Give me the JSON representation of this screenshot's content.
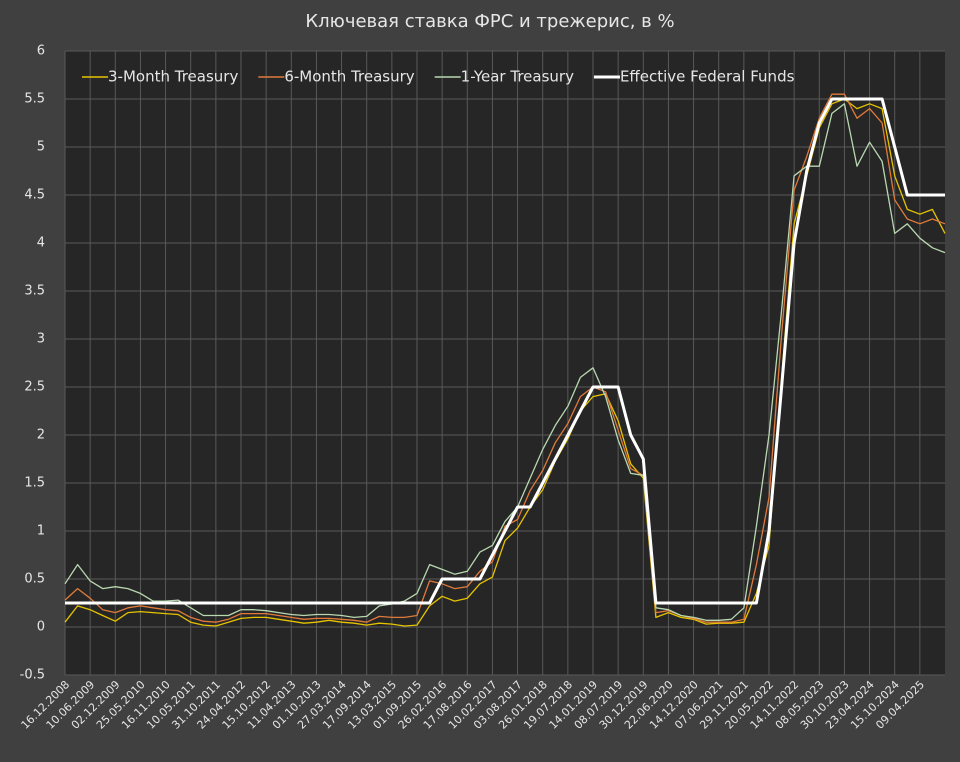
{
  "chart_data": {
    "type": "line",
    "title": "Ключевая ставка ФРС и трежерис, в %",
    "categories": [
      "16.12.2008",
      null,
      "10.06.2009",
      null,
      "02.12.2009",
      null,
      "25.05.2010",
      null,
      "16.11.2010",
      null,
      "10.05.2011",
      null,
      "31.10.2011",
      null,
      "24.04.2012",
      null,
      "15.10.2012",
      null,
      "11.04.2013",
      null,
      "01.10.2013",
      null,
      "27.03.2014",
      null,
      "17.09.2014",
      null,
      "13.03.2015",
      null,
      "01.09.2015",
      null,
      "26.02.2016",
      null,
      "17.08.2016",
      null,
      "10.02.2017",
      null,
      "03.08.2017",
      null,
      "26.01.2018",
      null,
      "19.07.2018",
      null,
      "14.01.2019",
      null,
      "08.07.2019",
      null,
      "30.12.2019",
      null,
      "22.06.2020",
      null,
      "14.12.2020",
      null,
      "07.06.2021",
      null,
      "29.11.2021",
      null,
      "20.05.2022",
      null,
      "14.11.2022",
      null,
      "08.05.2023",
      null,
      "30.10.2023",
      null,
      "23.04.2024",
      null,
      "15.10.2024",
      null,
      "09.04.2025",
      null,
      null
    ],
    "series": [
      {
        "name": "3-Month Treasury",
        "color": "#e6c300",
        "values": [
          0.05,
          0.22,
          0.18,
          0.12,
          0.06,
          0.15,
          0.16,
          0.15,
          0.14,
          0.13,
          0.05,
          0.02,
          0.01,
          0.05,
          0.09,
          0.1,
          0.1,
          0.08,
          0.06,
          0.04,
          0.05,
          0.07,
          0.05,
          0.04,
          0.02,
          0.04,
          0.03,
          0.01,
          0.02,
          0.22,
          0.32,
          0.27,
          0.3,
          0.45,
          0.52,
          0.9,
          1.03,
          1.25,
          1.43,
          1.73,
          1.96,
          2.25,
          2.4,
          2.43,
          2.15,
          1.7,
          1.55,
          0.1,
          0.15,
          0.1,
          0.08,
          0.03,
          0.04,
          0.04,
          0.05,
          0.35,
          0.85,
          2.6,
          4.2,
          4.7,
          5.2,
          5.45,
          5.5,
          5.4,
          5.45,
          5.4,
          4.7,
          4.35,
          4.3,
          4.35,
          4.1
        ]
      },
      {
        "name": "6-Month Treasury",
        "color": "#e07a3a",
        "values": [
          0.28,
          0.4,
          0.3,
          0.18,
          0.15,
          0.2,
          0.22,
          0.2,
          0.18,
          0.17,
          0.1,
          0.06,
          0.05,
          0.08,
          0.14,
          0.14,
          0.14,
          0.12,
          0.1,
          0.08,
          0.09,
          0.09,
          0.08,
          0.07,
          0.05,
          0.11,
          0.1,
          0.1,
          0.12,
          0.48,
          0.45,
          0.4,
          0.42,
          0.58,
          0.68,
          1.05,
          1.12,
          1.42,
          1.63,
          1.92,
          2.12,
          2.4,
          2.5,
          2.45,
          2.05,
          1.65,
          1.58,
          0.15,
          0.17,
          0.12,
          0.09,
          0.05,
          0.05,
          0.05,
          0.08,
          0.65,
          1.35,
          3.05,
          4.55,
          4.9,
          5.3,
          5.55,
          5.55,
          5.3,
          5.4,
          5.25,
          4.45,
          4.25,
          4.2,
          4.25,
          4.2
        ]
      },
      {
        "name": "1-Year Treasury",
        "color": "#b8d8b0",
        "values": [
          0.45,
          0.65,
          0.48,
          0.4,
          0.42,
          0.4,
          0.35,
          0.27,
          0.27,
          0.28,
          0.2,
          0.12,
          0.12,
          0.12,
          0.18,
          0.18,
          0.17,
          0.15,
          0.13,
          0.12,
          0.13,
          0.13,
          0.12,
          0.1,
          0.11,
          0.22,
          0.24,
          0.27,
          0.35,
          0.65,
          0.6,
          0.55,
          0.58,
          0.78,
          0.85,
          1.1,
          1.25,
          1.55,
          1.85,
          2.1,
          2.3,
          2.6,
          2.7,
          2.4,
          1.95,
          1.6,
          1.58,
          0.2,
          0.18,
          0.12,
          0.1,
          0.07,
          0.07,
          0.08,
          0.2,
          1.05,
          2.0,
          3.3,
          4.7,
          4.8,
          4.8,
          5.35,
          5.45,
          4.8,
          5.05,
          4.85,
          4.1,
          4.2,
          4.05,
          3.95,
          3.9
        ]
      },
      {
        "name": "Effective Federal Funds",
        "color": "#ffffff",
        "values": [
          0.25,
          0.25,
          0.25,
          0.25,
          0.25,
          0.25,
          0.25,
          0.25,
          0.25,
          0.25,
          0.25,
          0.25,
          0.25,
          0.25,
          0.25,
          0.25,
          0.25,
          0.25,
          0.25,
          0.25,
          0.25,
          0.25,
          0.25,
          0.25,
          0.25,
          0.25,
          0.25,
          0.25,
          0.25,
          0.25,
          0.5,
          0.5,
          0.5,
          0.5,
          0.75,
          1.0,
          1.25,
          1.25,
          1.5,
          1.75,
          2.0,
          2.25,
          2.5,
          2.5,
          2.5,
          2.0,
          1.75,
          0.25,
          0.25,
          0.25,
          0.25,
          0.25,
          0.25,
          0.25,
          0.25,
          0.25,
          1.0,
          2.5,
          4.0,
          4.75,
          5.25,
          5.5,
          5.5,
          5.5,
          5.5,
          5.5,
          5.0,
          4.5,
          4.5,
          4.5,
          4.5
        ]
      }
    ],
    "ylim": [
      -0.5,
      6
    ],
    "yticks": [
      -0.5,
      0,
      0.5,
      1,
      1.5,
      2,
      2.5,
      3,
      3.5,
      4,
      4.5,
      5,
      5.5,
      6
    ],
    "grid": true,
    "legend": "top"
  }
}
